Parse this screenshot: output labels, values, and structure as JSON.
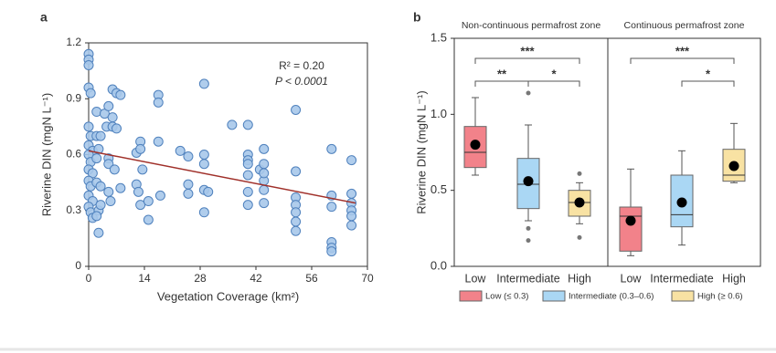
{
  "chart_data": [
    {
      "type": "scatter",
      "panel_label": "a",
      "x_label": "Vegetation Coverage (km²)",
      "y_label": "Riverine DIN (mgN L⁻¹)",
      "annotations": [
        "R² = 0.20",
        "P < 0.0001"
      ],
      "color": "#a7c8ea",
      "edge_color": "#4f81bd",
      "x": [
        0,
        0,
        0,
        0,
        0.5,
        0,
        0.5,
        0,
        1,
        0,
        0.5,
        0,
        1,
        0,
        0.5,
        0,
        1,
        0,
        0.5,
        1,
        2,
        2,
        2.5,
        2,
        2,
        2.5,
        2,
        2.5,
        3,
        3,
        3,
        4,
        4.5,
        5,
        5,
        5,
        5,
        5.5,
        6,
        6,
        6,
        6.5,
        7,
        7,
        8,
        8,
        12,
        12,
        12.5,
        13,
        13,
        13.5,
        13,
        15,
        15,
        17.5,
        17.5,
        17.5,
        18,
        23,
        25,
        25,
        25,
        29,
        29,
        29,
        29,
        29,
        30,
        36,
        40,
        40,
        40,
        40,
        40,
        40,
        40,
        43,
        44,
        44,
        44,
        44,
        44,
        44,
        52,
        52,
        52,
        52,
        52,
        52,
        52,
        61,
        61,
        61,
        61,
        61,
        61,
        66,
        66,
        66,
        66,
        66,
        66
      ],
      "values": [
        1.14,
        1.11,
        1.08,
        0.96,
        0.93,
        0.75,
        0.7,
        0.65,
        0.62,
        0.6,
        0.56,
        0.52,
        0.5,
        0.46,
        0.43,
        0.38,
        0.35,
        0.32,
        0.29,
        0.26,
        0.83,
        0.7,
        0.63,
        0.58,
        0.45,
        0.3,
        0.27,
        0.18,
        0.7,
        0.43,
        0.33,
        0.82,
        0.75,
        0.86,
        0.58,
        0.55,
        0.4,
        0.35,
        0.95,
        0.8,
        0.75,
        0.52,
        0.93,
        0.74,
        0.92,
        0.42,
        0.61,
        0.44,
        0.4,
        0.67,
        0.63,
        0.52,
        0.33,
        0.35,
        0.25,
        0.92,
        0.88,
        0.67,
        0.38,
        0.62,
        0.59,
        0.44,
        0.39,
        0.6,
        0.55,
        0.41,
        0.29,
        0.98,
        0.4,
        0.76,
        0.76,
        0.6,
        0.57,
        0.55,
        0.49,
        0.4,
        0.33,
        0.52,
        0.46,
        0.41,
        0.34,
        0.63,
        0.55,
        0.5,
        0.84,
        0.51,
        0.37,
        0.33,
        0.29,
        0.24,
        0.19,
        0.63,
        0.38,
        0.32,
        0.13,
        0.1,
        0.08,
        0.57,
        0.39,
        0.34,
        0.3,
        0.27,
        0.22
      ],
      "fit": {
        "color": "#a0302a",
        "x": [
          0,
          67
        ],
        "values": [
          0.62,
          0.34
        ]
      },
      "xlim": [
        0,
        70
      ],
      "xticks": [
        0,
        14,
        28,
        42,
        56,
        70
      ],
      "ylim": [
        0,
        1.2
      ],
      "yticks": [
        0,
        0.3,
        0.6,
        0.9,
        1.2
      ]
    },
    {
      "type": "box",
      "panel_label": "b",
      "y_label": "Riverine DIN (mgN L⁻¹)",
      "ylim": [
        0,
        1.5
      ],
      "yticks": [
        {
          "value": 0,
          "label": "0.0"
        },
        0.5,
        {
          "value": 1,
          "label": "1.0"
        },
        1.5
      ],
      "legend": [
        {
          "name": "Low (≤ 0.3)",
          "color": "#f2828a"
        },
        {
          "name": "Intermediate (0.3–0.6)",
          "color": "#aad7f4"
        },
        {
          "name": "High (≥ 0.6)",
          "color": "#f8e2a3"
        }
      ],
      "groups": [
        {
          "name": "Non-continuous permafrost zone",
          "boxes": [
            {
              "category": "Low",
              "whisker_low": 0.6,
              "q1": 0.65,
              "median": 0.75,
              "q3": 0.92,
              "whisker_high": 1.11,
              "mean": 0.8,
              "outliers": []
            },
            {
              "category": "Intermediate",
              "whisker_low": 0.3,
              "q1": 0.38,
              "median": 0.54,
              "q3": 0.71,
              "whisker_high": 0.93,
              "mean": 0.56,
              "outliers": [
                1.14,
                0.25,
                0.17
              ]
            },
            {
              "category": "High",
              "whisker_low": 0.28,
              "q1": 0.33,
              "median": 0.42,
              "q3": 0.5,
              "whisker_high": 0.55,
              "mean": 0.42,
              "outliers": [
                0.61,
                0.19
              ]
            }
          ],
          "brackets": [
            {
              "from": 0,
              "to": 2,
              "label": "***"
            },
            {
              "from": 0,
              "to": 1,
              "label": "**"
            },
            {
              "from": 1,
              "to": 2,
              "label": "*"
            }
          ]
        },
        {
          "name": "Continuous permafrost zone",
          "boxes": [
            {
              "category": "Low",
              "whisker_low": 0.07,
              "q1": 0.1,
              "median": 0.33,
              "q3": 0.39,
              "whisker_high": 0.64,
              "mean": 0.3,
              "outliers": []
            },
            {
              "category": "Intermediate",
              "whisker_low": 0.14,
              "q1": 0.26,
              "median": 0.34,
              "q3": 0.6,
              "whisker_high": 0.76,
              "mean": 0.42,
              "outliers": []
            },
            {
              "category": "High",
              "whisker_low": 0.55,
              "q1": 0.56,
              "median": 0.6,
              "q3": 0.77,
              "whisker_high": 0.94,
              "mean": 0.66,
              "outliers": []
            }
          ],
          "brackets": [
            {
              "from": 0,
              "to": 2,
              "label": "***"
            },
            {
              "from": 1,
              "to": 2,
              "label": "*"
            }
          ]
        }
      ]
    }
  ]
}
